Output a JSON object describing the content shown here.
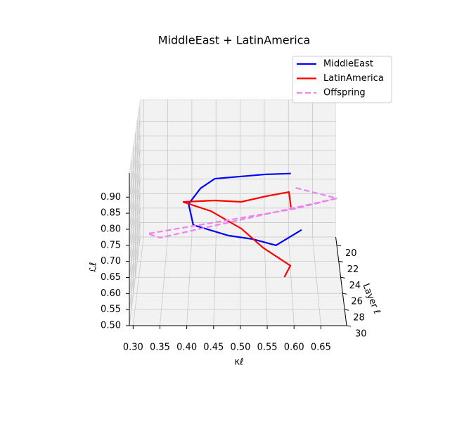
{
  "chart_data": {
    "type": "line3d",
    "title": "MiddleEast + LatinAmerica",
    "xlabel": "κℓ",
    "ylabel": "Layer ℓ",
    "zlabel": "ℒℓ",
    "xlim": [
      0.293,
      0.698
    ],
    "ylim": [
      19,
      30
    ],
    "zlim": [
      0.5,
      0.975
    ],
    "xticks": [
      {
        "value": 0.3,
        "label": "0.30"
      },
      {
        "value": 0.35,
        "label": "0.35"
      },
      {
        "value": 0.4,
        "label": "0.40"
      },
      {
        "value": 0.45,
        "label": "0.45"
      },
      {
        "value": 0.5,
        "label": "0.50"
      },
      {
        "value": 0.55,
        "label": "0.55"
      },
      {
        "value": 0.6,
        "label": "0.60"
      },
      {
        "value": 0.65,
        "label": "0.65"
      }
    ],
    "yticks": [
      20,
      22,
      24,
      26,
      28,
      30
    ],
    "zticks": [
      {
        "value": 0.5,
        "label": "0.50"
      },
      {
        "value": 0.55,
        "label": "0.55"
      },
      {
        "value": 0.6,
        "label": "0.60"
      },
      {
        "value": 0.65,
        "label": "0.65"
      },
      {
        "value": 0.7,
        "label": "0.70"
      },
      {
        "value": 0.75,
        "label": "0.75"
      },
      {
        "value": 0.8,
        "label": "0.80"
      },
      {
        "value": 0.85,
        "label": "0.85"
      },
      {
        "value": 0.9,
        "label": "0.90"
      }
    ],
    "grid": true,
    "legend": "upper right",
    "series": [
      {
        "name": "MiddleEast",
        "color": "#0000ff",
        "linestyle": "solid",
        "x": [
          0.604,
          0.551,
          0.449,
          0.421,
          0.401,
          0.399,
          0.409,
          0.477,
          0.524,
          0.567,
          0.614
        ],
        "y": [
          20,
          21,
          22,
          23,
          24,
          25,
          26,
          27,
          28,
          29,
          30
        ],
        "z": [
          0.745,
          0.767,
          0.777,
          0.769,
          0.748,
          0.765,
          0.721,
          0.711,
          0.723,
          0.727,
          0.798
        ]
      },
      {
        "name": "LatinAmerica",
        "color": "#ff0000",
        "linestyle": "solid",
        "x": [
          0.604,
          0.599,
          0.552,
          0.502,
          0.449,
          0.388,
          0.443,
          0.502,
          0.543,
          0.594,
          0.582
        ],
        "y": [
          20,
          21,
          22,
          23,
          24,
          25,
          26,
          27,
          28,
          29,
          30
        ],
        "z": [
          0.629,
          0.707,
          0.718,
          0.724,
          0.753,
          0.772,
          0.766,
          0.733,
          0.696,
          0.663,
          0.651
        ]
      },
      {
        "name": "Offspring",
        "color": "#ee82ee",
        "linestyle": "dashed",
        "x": [
          0.614,
          0.698,
          0.61,
          0.321,
          0.345,
          0.698
        ],
        "y": [
          20,
          20,
          21,
          26,
          26,
          20
        ],
        "z": [
          0.696,
          0.66,
          0.65,
          0.693,
          0.68,
          0.66
        ]
      }
    ]
  }
}
